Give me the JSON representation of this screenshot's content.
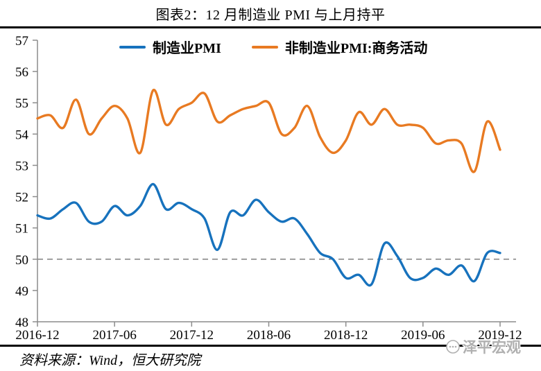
{
  "title": "图表2：12 月制造业 PMI 与上月持平",
  "legend": [
    {
      "label": "制造业PMI",
      "color": "#1772BD"
    },
    {
      "label": "非制造业PMI:商务活动",
      "color": "#E87A22"
    }
  ],
  "source_note": "资料来源：Wind，恒大研究院",
  "watermark": "泽平宏观",
  "chart_data": {
    "type": "line",
    "title": "图表2：12 月制造业 PMI 与上月持平",
    "xlabel": "",
    "ylabel": "",
    "ylim": [
      48,
      57
    ],
    "y_ticks": [
      57,
      56,
      55,
      54,
      53,
      52,
      51,
      50,
      49,
      48
    ],
    "reference_line": 50,
    "grid": false,
    "legend_position": "top",
    "line_style": "smooth",
    "x": [
      "2016-12",
      "2017-01",
      "2017-02",
      "2017-03",
      "2017-04",
      "2017-05",
      "2017-06",
      "2017-07",
      "2017-08",
      "2017-09",
      "2017-10",
      "2017-11",
      "2017-12",
      "2018-01",
      "2018-02",
      "2018-03",
      "2018-04",
      "2018-05",
      "2018-06",
      "2018-07",
      "2018-08",
      "2018-09",
      "2018-10",
      "2018-11",
      "2018-12",
      "2019-01",
      "2019-02",
      "2019-03",
      "2019-04",
      "2019-05",
      "2019-06",
      "2019-07",
      "2019-08",
      "2019-09",
      "2019-10",
      "2019-11",
      "2019-12"
    ],
    "x_tick_labels": [
      "2016-12",
      "2017-06",
      "2017-12",
      "2018-06",
      "2018-12",
      "2019-06",
      "2019-12"
    ],
    "x_tick_months": [
      0,
      6,
      12,
      18,
      24,
      30,
      36
    ],
    "series": [
      {
        "name": "制造业PMI",
        "color": "#1772BD",
        "values": [
          51.4,
          51.3,
          51.6,
          51.8,
          51.2,
          51.2,
          51.7,
          51.4,
          51.7,
          52.4,
          51.6,
          51.8,
          51.6,
          51.3,
          50.3,
          51.5,
          51.4,
          51.9,
          51.5,
          51.2,
          51.3,
          50.8,
          50.2,
          50.0,
          49.4,
          49.5,
          49.2,
          50.5,
          50.1,
          49.4,
          49.4,
          49.7,
          49.5,
          49.8,
          49.3,
          50.2,
          50.2
        ]
      },
      {
        "name": "非制造业PMI:商务活动",
        "color": "#E87A22",
        "values": [
          54.5,
          54.6,
          54.2,
          55.1,
          54.0,
          54.5,
          54.9,
          54.5,
          53.4,
          55.4,
          54.3,
          54.8,
          55.0,
          55.3,
          54.4,
          54.6,
          54.8,
          54.9,
          55.0,
          54.0,
          54.2,
          54.9,
          53.9,
          53.4,
          53.8,
          54.7,
          54.3,
          54.8,
          54.3,
          54.3,
          54.2,
          53.7,
          53.8,
          53.7,
          52.8,
          54.4,
          53.5
        ]
      }
    ]
  }
}
